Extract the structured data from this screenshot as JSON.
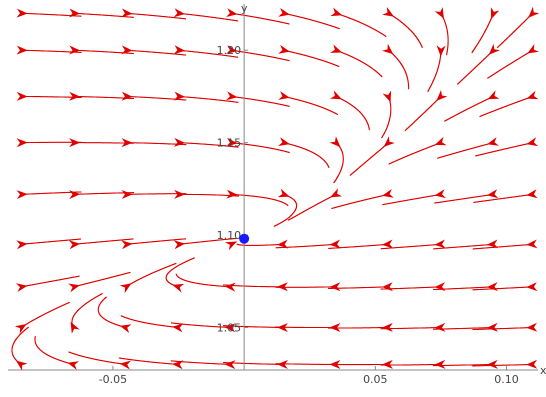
{
  "chart_data": {
    "type": "stream",
    "xlabel": "x",
    "ylabel": "y",
    "xlim": [
      -0.09,
      0.112
    ],
    "ylim": [
      1.027,
      1.225
    ],
    "x_ticks": [
      {
        "value": -0.05,
        "label": "-0.05"
      },
      {
        "value": 0.05,
        "label": "0.05"
      },
      {
        "value": 0.1,
        "label": "0.10"
      }
    ],
    "y_ticks": [
      {
        "value": 1.05,
        "label": "1.05"
      },
      {
        "value": 1.1,
        "label": "1.10"
      },
      {
        "value": 1.15,
        "label": "1.15"
      },
      {
        "value": 1.2,
        "label": "1.20"
      }
    ],
    "equilibrium_point": {
      "x": 0.0,
      "y": 1.098
    },
    "attracting_curve": [
      [
        -0.025,
        1.08
      ],
      [
        -0.01,
        1.09
      ],
      [
        0.0,
        1.098
      ],
      [
        0.015,
        1.11
      ],
      [
        0.03,
        1.128
      ],
      [
        0.04,
        1.145
      ],
      [
        0.05,
        1.158
      ],
      [
        0.06,
        1.175
      ]
    ],
    "seed_rows_y": [
      1.22,
      1.2,
      1.175,
      1.15,
      1.122,
      1.095,
      1.072,
      1.05,
      1.03
    ],
    "seed_cols_x": [
      -0.085,
      -0.065,
      -0.045,
      -0.025,
      -0.005,
      0.015,
      0.035,
      0.055,
      0.075,
      0.095,
      0.11
    ],
    "colors": {
      "stream": "#e00000",
      "point": "#1a1aff",
      "axis": "#888888"
    }
  }
}
